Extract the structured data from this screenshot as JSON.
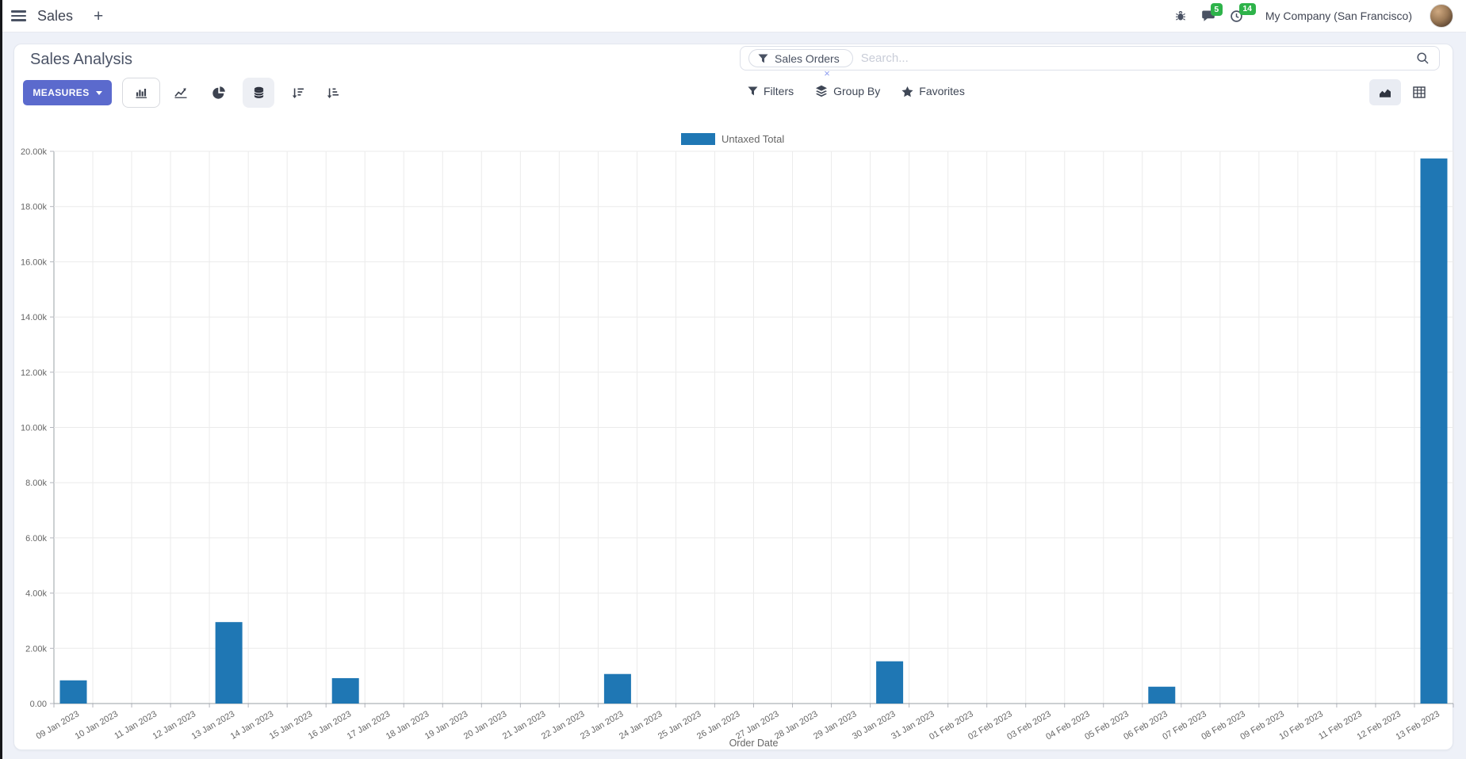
{
  "navbar": {
    "brand": "Sales",
    "new_tab_label": "+",
    "messages_badge": "5",
    "activities_badge": "14",
    "company_name": "My Company (San Francisco)"
  },
  "control_panel": {
    "title": "Sales Analysis",
    "measures_button": "MEASURES",
    "search": {
      "facet_label": "Sales Orders",
      "placeholder": "Search...",
      "facet_remove_label": "×"
    },
    "menus": {
      "filters": "Filters",
      "group_by": "Group By",
      "favorites": "Favorites"
    }
  },
  "colors": {
    "accent": "#5b6acd",
    "bar": "#1f77b4",
    "badge_green": "#2eb34a"
  },
  "chart_data": {
    "type": "bar",
    "title": "",
    "xlabel": "Order Date",
    "ylabel": "",
    "ylim": [
      0,
      20000
    ],
    "ytick_step": 2000,
    "ytick_labels": [
      "0.00",
      "2.00k",
      "4.00k",
      "6.00k",
      "8.00k",
      "10.00k",
      "12.00k",
      "14.00k",
      "16.00k",
      "18.00k",
      "20.00k"
    ],
    "grid": true,
    "legend_position": "top",
    "categories": [
      "09 Jan 2023",
      "10 Jan 2023",
      "11 Jan 2023",
      "12 Jan 2023",
      "13 Jan 2023",
      "14 Jan 2023",
      "15 Jan 2023",
      "16 Jan 2023",
      "17 Jan 2023",
      "18 Jan 2023",
      "19 Jan 2023",
      "20 Jan 2023",
      "21 Jan 2023",
      "22 Jan 2023",
      "23 Jan 2023",
      "24 Jan 2023",
      "25 Jan 2023",
      "26 Jan 2023",
      "27 Jan 2023",
      "28 Jan 2023",
      "29 Jan 2023",
      "30 Jan 2023",
      "31 Jan 2023",
      "01 Feb 2023",
      "02 Feb 2023",
      "03 Feb 2023",
      "04 Feb 2023",
      "05 Feb 2023",
      "06 Feb 2023",
      "07 Feb 2023",
      "08 Feb 2023",
      "09 Feb 2023",
      "10 Feb 2023",
      "11 Feb 2023",
      "12 Feb 2023",
      "13 Feb 2023"
    ],
    "series": [
      {
        "name": "Untaxed Total",
        "color": "#1f77b4",
        "values": [
          840,
          0,
          0,
          0,
          2950,
          0,
          0,
          920,
          0,
          0,
          0,
          0,
          0,
          0,
          1070,
          0,
          0,
          0,
          0,
          0,
          0,
          1530,
          0,
          0,
          0,
          0,
          0,
          0,
          610,
          0,
          0,
          0,
          0,
          0,
          0,
          19740
        ]
      }
    ]
  }
}
